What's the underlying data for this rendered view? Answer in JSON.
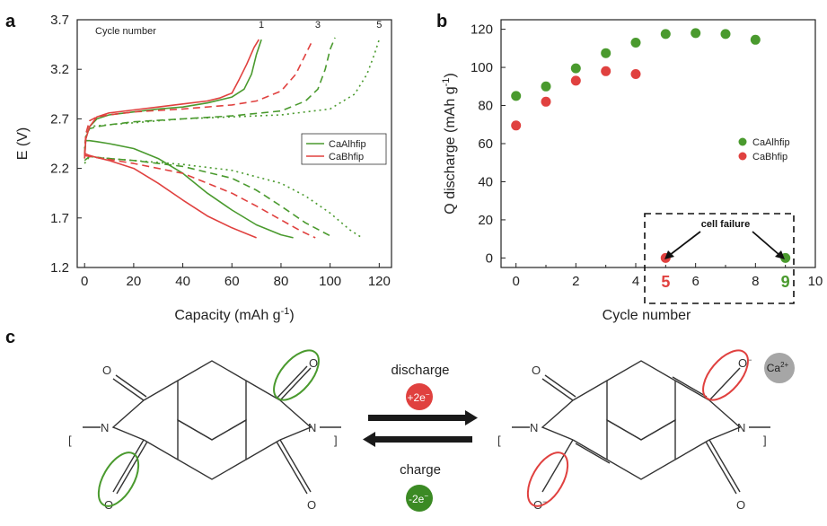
{
  "panels": {
    "a": "a",
    "b": "b",
    "c": "c"
  },
  "colors": {
    "CaAlhfip": "#4a9a2e",
    "CaBhfip": "#e0413f",
    "cation": "#a6a6a6",
    "text": "#222222"
  },
  "chart_data": [
    {
      "type": "line",
      "panel": "a",
      "xlabel": "Capacity (mAh g",
      "xlabel_sup": "-1",
      "xlabel_end": ")",
      "ylabel": "E (V)",
      "xlim": [
        -3,
        125
      ],
      "ylim": [
        1.2,
        3.7
      ],
      "xticks": [
        "0",
        "20",
        "40",
        "60",
        "80",
        "100",
        "120"
      ],
      "yticks": [
        "1.2",
        "1.7",
        "2.2",
        "2.7",
        "3.2",
        "3.7"
      ],
      "annotation": "Cycle number",
      "cycle_labels": [
        {
          "text": "1",
          "x": 72,
          "y": 3.62
        },
        {
          "text": "3",
          "x": 95,
          "y": 3.62
        },
        {
          "text": "5",
          "x": 120,
          "y": 3.62
        }
      ],
      "legend_position": "right",
      "legend": [
        "CaAlhfip",
        "CaBhfip"
      ],
      "series": [
        {
          "name": "CaAlhfip",
          "cycle": 1,
          "branch": "charge",
          "style": "solid",
          "x": [
            0,
            0.5,
            2,
            5,
            10,
            20,
            30,
            40,
            50,
            60,
            65,
            68,
            70,
            72
          ],
          "y": [
            2.3,
            2.5,
            2.62,
            2.7,
            2.74,
            2.77,
            2.8,
            2.82,
            2.86,
            2.92,
            3.0,
            3.15,
            3.35,
            3.5
          ]
        },
        {
          "name": "CaAlhfip",
          "cycle": 1,
          "branch": "discharge",
          "style": "solid",
          "x": [
            0,
            2,
            5,
            10,
            20,
            30,
            40,
            50,
            60,
            70,
            80,
            85
          ],
          "y": [
            2.48,
            2.48,
            2.47,
            2.45,
            2.4,
            2.3,
            2.15,
            1.95,
            1.78,
            1.63,
            1.53,
            1.5
          ]
        },
        {
          "name": "CaAlhfip",
          "cycle": 3,
          "branch": "charge",
          "style": "dashed",
          "x": [
            0,
            0.5,
            2,
            5,
            10,
            20,
            40,
            60,
            80,
            90,
            95,
            98,
            100,
            102
          ],
          "y": [
            2.35,
            2.52,
            2.6,
            2.62,
            2.64,
            2.67,
            2.7,
            2.73,
            2.78,
            2.88,
            3.0,
            3.2,
            3.4,
            3.52
          ]
        },
        {
          "name": "CaAlhfip",
          "cycle": 3,
          "branch": "discharge",
          "style": "dashed",
          "x": [
            0,
            2,
            10,
            20,
            40,
            60,
            70,
            80,
            90,
            100
          ],
          "y": [
            2.28,
            2.32,
            2.3,
            2.28,
            2.22,
            2.1,
            1.98,
            1.82,
            1.65,
            1.52
          ]
        },
        {
          "name": "CaAlhfip",
          "cycle": 5,
          "branch": "charge",
          "style": "dotted",
          "x": [
            0,
            0.5,
            2,
            5,
            10,
            20,
            40,
            60,
            80,
            100,
            110,
            115,
            118,
            120
          ],
          "y": [
            2.4,
            2.55,
            2.62,
            2.63,
            2.64,
            2.66,
            2.7,
            2.72,
            2.74,
            2.8,
            2.95,
            3.15,
            3.35,
            3.5
          ]
        },
        {
          "name": "CaAlhfip",
          "cycle": 5,
          "branch": "discharge",
          "style": "dotted",
          "x": [
            0,
            2,
            10,
            20,
            40,
            60,
            80,
            90,
            100,
            108,
            113
          ],
          "y": [
            2.25,
            2.32,
            2.3,
            2.28,
            2.24,
            2.18,
            2.05,
            1.92,
            1.75,
            1.58,
            1.5
          ]
        },
        {
          "name": "CaBhfip",
          "cycle": 1,
          "branch": "charge",
          "style": "solid",
          "x": [
            0,
            0.5,
            2,
            5,
            10,
            20,
            30,
            40,
            50,
            55,
            60,
            63,
            66,
            69,
            71
          ],
          "y": [
            2.3,
            2.5,
            2.62,
            2.72,
            2.76,
            2.79,
            2.82,
            2.85,
            2.88,
            2.91,
            2.96,
            3.1,
            3.25,
            3.42,
            3.5
          ]
        },
        {
          "name": "CaBhfip",
          "cycle": 1,
          "branch": "discharge",
          "style": "solid",
          "x": [
            0,
            2,
            5,
            10,
            20,
            30,
            40,
            50,
            60,
            70
          ],
          "y": [
            2.35,
            2.33,
            2.31,
            2.28,
            2.2,
            2.05,
            1.88,
            1.72,
            1.6,
            1.5
          ]
        },
        {
          "name": "CaBhfip",
          "cycle": 3,
          "branch": "charge",
          "style": "dashed",
          "x": [
            0,
            0.5,
            2,
            5,
            10,
            20,
            40,
            60,
            70,
            80,
            86,
            90,
            93
          ],
          "y": [
            2.33,
            2.55,
            2.68,
            2.72,
            2.74,
            2.77,
            2.8,
            2.84,
            2.88,
            2.98,
            3.15,
            3.35,
            3.5
          ]
        },
        {
          "name": "CaBhfip",
          "cycle": 3,
          "branch": "discharge",
          "style": "dashed",
          "x": [
            0,
            2,
            10,
            20,
            40,
            60,
            70,
            80,
            88,
            94
          ],
          "y": [
            2.33,
            2.32,
            2.29,
            2.25,
            2.15,
            1.95,
            1.82,
            1.68,
            1.57,
            1.5
          ]
        }
      ]
    },
    {
      "type": "scatter",
      "panel": "b",
      "xlabel": "Cycle number",
      "ylabel": "Q discharge (mAh g",
      "ylabel_sup": "-1",
      "ylabel_end": ")",
      "xlim": [
        -0.5,
        10
      ],
      "ylim": [
        -5,
        125
      ],
      "xticks": [
        "0",
        "2",
        "4",
        "6",
        "8",
        "10"
      ],
      "yticks": [
        "0",
        "20",
        "40",
        "60",
        "80",
        "100",
        "120"
      ],
      "highlighted_ticks": [
        {
          "label": "5",
          "value": 5,
          "series": "CaBhfip"
        },
        {
          "label": "9",
          "value": 9,
          "series": "CaAlhfip"
        }
      ],
      "legend_position": "right",
      "legend": [
        "CaAlhfip",
        "CaBhfip"
      ],
      "annotation": "cell failure",
      "series": [
        {
          "name": "CaAlhfip",
          "x": [
            0,
            1,
            2,
            3,
            4,
            5,
            6,
            7,
            8,
            9
          ],
          "y": [
            85,
            90,
            99.5,
            107.5,
            113,
            117.5,
            118,
            117.5,
            114.5,
            0
          ]
        },
        {
          "name": "CaBhfip",
          "x": [
            0,
            1,
            2,
            3,
            4,
            5
          ],
          "y": [
            69.5,
            82,
            93,
            98,
            96.5,
            0
          ]
        }
      ]
    }
  ],
  "scheme": {
    "discharge_label": "discharge",
    "discharge_badge": "+2e",
    "charge_label": "charge",
    "charge_badge": "-2e",
    "electron_sup": "−",
    "cation": "Ca",
    "cation_charge": "2+",
    "atoms": {
      "O": "O",
      "N": "N",
      "O_minus": "O",
      "minus": "−"
    }
  }
}
